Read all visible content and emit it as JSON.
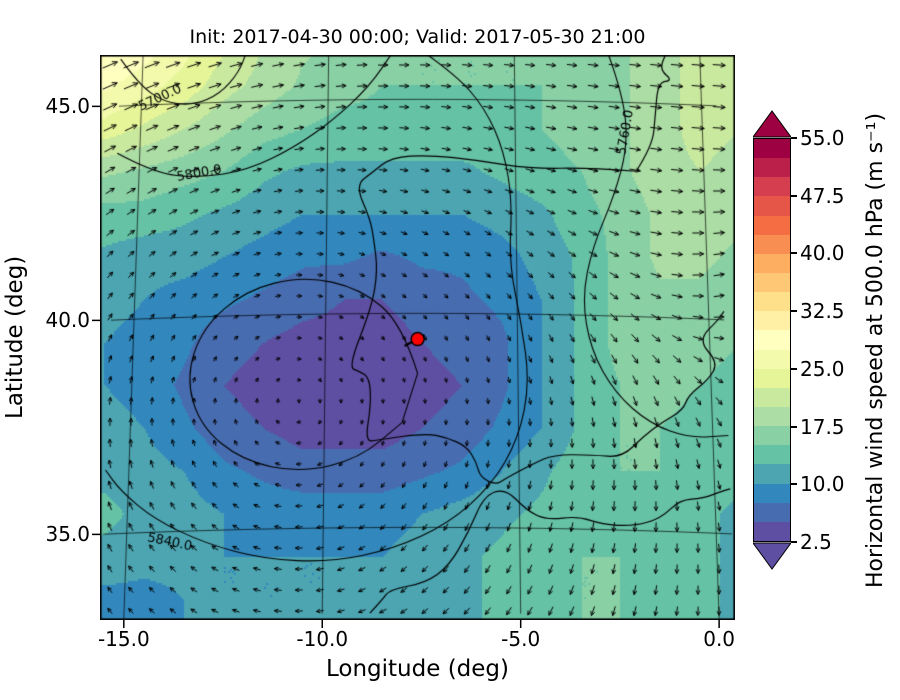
{
  "chart_data": {
    "type": "heatmap",
    "title": "Init: 2017-04-30 00:00; Valid: 2017-05-30 21:00",
    "xlabel": "Longitude (deg)",
    "ylabel": "Latitude (deg)",
    "xlim": [
      -15.6,
      0.4
    ],
    "ylim": [
      33.0,
      46.2
    ],
    "xticks": [
      -15.0,
      -10.0,
      -5.0,
      0.0
    ],
    "xtick_labels": [
      "-15.0",
      "-10.0",
      "-5.0",
      "0.0"
    ],
    "yticks": [
      35.0,
      40.0,
      45.0
    ],
    "ytick_labels": [
      "35.0",
      "40.0",
      "45.0"
    ],
    "grid": true,
    "colorbar": {
      "label": "Horizontal wind speed at 500.0 hPa (m s⁻¹)",
      "ticks": [
        2.5,
        10.0,
        17.5,
        25.0,
        32.5,
        40.0,
        47.5,
        55.0
      ],
      "tick_labels": [
        "2.5",
        "10.0",
        "17.5",
        "25.0",
        "32.5",
        "40.0",
        "47.5",
        "55.0"
      ],
      "vmin": 2.5,
      "vmax": 55.0,
      "level_step": 2.5,
      "colormap": "Spectral_r",
      "anchors": [
        "#5e4fa2",
        "#3288bd",
        "#66c2a5",
        "#abdda4",
        "#e6f598",
        "#ffffbf",
        "#fee08b",
        "#fdae61",
        "#f46d43",
        "#d53e4f",
        "#9e0142"
      ],
      "extend": "both"
    },
    "marker": {
      "lon": -7.6,
      "lat": 39.4,
      "color": "#ff0000",
      "edge_color": "#000000"
    },
    "flow": {
      "sense": "clockwise",
      "center_lon": -10.7,
      "center_lat": 38.4,
      "radius_deg": 3.8,
      "max_tangential": 9,
      "jet_speed": 22,
      "jet_lat": 44
    },
    "wind_field": {
      "lons": [
        -15.5,
        -14.5,
        -13.5,
        -12.5,
        -11.5,
        -10.5,
        -9.5,
        -8.5,
        -7.5,
        -6.5,
        -5.5,
        -4.5,
        -3.5,
        -2.5,
        -1.5,
        -0.5,
        0.5
      ],
      "lats": [
        33.5,
        34.5,
        35.5,
        36.5,
        37.5,
        38.5,
        39.5,
        40.5,
        41.5,
        42.5,
        43.5,
        44.5,
        45.5,
        46.5
      ],
      "speed": [
        [
          9,
          9,
          10,
          10,
          10,
          10,
          10,
          11,
          11,
          12,
          13,
          14,
          15,
          15,
          14,
          13,
          12
        ],
        [
          12,
          11,
          11,
          10,
          10,
          10,
          10,
          10,
          11,
          12,
          13,
          14,
          15,
          15,
          14,
          13,
          12
        ],
        [
          13,
          12,
          11,
          10,
          9,
          9,
          9,
          9,
          10,
          11,
          12,
          13,
          14,
          15,
          14,
          13,
          12
        ],
        [
          12,
          11,
          10,
          8,
          7,
          6,
          6,
          6,
          7,
          8,
          10,
          12,
          14,
          15,
          15,
          14,
          13
        ],
        [
          11,
          10,
          8,
          6,
          5,
          4,
          4,
          4,
          5,
          6,
          8,
          10,
          13,
          15,
          15,
          14,
          13
        ],
        [
          10,
          9,
          7,
          5,
          4,
          3,
          3,
          4,
          4,
          5,
          7,
          10,
          13,
          15,
          16,
          15,
          14
        ],
        [
          10,
          9,
          8,
          6,
          5,
          4,
          4,
          4,
          5,
          6,
          7,
          10,
          13,
          16,
          17,
          16,
          15
        ],
        [
          11,
          10,
          9,
          8,
          7,
          6,
          5,
          5,
          6,
          7,
          8,
          10,
          13,
          16,
          17,
          17,
          16
        ],
        [
          12,
          11,
          11,
          10,
          9,
          8,
          8,
          7,
          8,
          8,
          9,
          11,
          13,
          16,
          18,
          18,
          17
        ],
        [
          14,
          14,
          13,
          12,
          11,
          10,
          10,
          10,
          10,
          10,
          11,
          12,
          14,
          16,
          18,
          19,
          18
        ],
        [
          18,
          17,
          16,
          15,
          13,
          12,
          12,
          12,
          12,
          12,
          13,
          14,
          15,
          17,
          19,
          20,
          19
        ],
        [
          24,
          22,
          20,
          18,
          16,
          15,
          14,
          14,
          14,
          14,
          14,
          15,
          16,
          17,
          19,
          21,
          20
        ],
        [
          28,
          26,
          24,
          21,
          19,
          17,
          16,
          15,
          15,
          15,
          15,
          15,
          16,
          17,
          19,
          21,
          21
        ],
        [
          31,
          29,
          26,
          23,
          20,
          18,
          17,
          16,
          15,
          15,
          15,
          15,
          16,
          17,
          19,
          21,
          21
        ]
      ]
    },
    "contours": [
      {
        "label": "5700.0",
        "label_pos": [
          -14.5,
          45.15
        ],
        "label_rot": -25,
        "closed": false,
        "points": [
          [
            -15.6,
            46.1
          ],
          [
            -15.1,
            45.5
          ],
          [
            -14.4,
            45.05
          ],
          [
            -13.6,
            44.95
          ],
          [
            -12.9,
            45.2
          ],
          [
            -12.4,
            45.7
          ],
          [
            -12.2,
            46.2
          ]
        ]
      },
      {
        "label": "5800.0",
        "label_pos": [
          -13.4,
          43.35
        ],
        "label_rot": -10,
        "closed": false,
        "points": [
          [
            -15.6,
            43.9
          ],
          [
            -14.6,
            43.4
          ],
          [
            -13.4,
            43.25
          ],
          [
            -12.1,
            43.4
          ],
          [
            -10.9,
            43.9
          ],
          [
            -9.9,
            44.5
          ],
          [
            -8.9,
            45.3
          ],
          [
            -8.2,
            46.2
          ]
        ]
      },
      {
        "label": "5840.0",
        "label_pos": [
          -13.9,
          34.75
        ],
        "label_rot": 12,
        "closed": false,
        "points": [
          [
            -7.6,
            46.2
          ],
          [
            -6.6,
            45.6
          ],
          [
            -5.8,
            44.8
          ],
          [
            -5.3,
            43.8
          ],
          [
            -5.1,
            42.6
          ],
          [
            -5.2,
            41.2
          ],
          [
            -4.9,
            39.8
          ],
          [
            -4.7,
            38.4
          ],
          [
            -5.0,
            37.1
          ],
          [
            -5.7,
            36.0
          ],
          [
            -6.8,
            35.1
          ],
          [
            -8.2,
            34.5
          ],
          [
            -9.8,
            34.2
          ],
          [
            -11.5,
            34.3
          ],
          [
            -13.0,
            34.7
          ],
          [
            -14.3,
            35.3
          ],
          [
            -15.2,
            36.0
          ],
          [
            -15.6,
            36.5
          ]
        ]
      },
      {
        "label": "",
        "label_pos": null,
        "label_rot": 0,
        "closed": true,
        "points": [
          [
            -7.6,
            38.6
          ],
          [
            -8.0,
            39.75
          ],
          [
            -9.1,
            40.59
          ],
          [
            -10.6,
            40.9
          ],
          [
            -12.1,
            40.59
          ],
          [
            -13.2,
            39.75
          ],
          [
            -13.6,
            38.6
          ],
          [
            -13.2,
            37.45
          ],
          [
            -12.1,
            36.61
          ],
          [
            -10.6,
            36.3
          ],
          [
            -9.1,
            36.61
          ],
          [
            -8.0,
            37.45
          ]
        ]
      },
      {
        "label": "5760.0",
        "label_pos": [
          -2.05,
          44.3
        ],
        "label_rot": -80,
        "closed": false,
        "points": [
          [
            -2.5,
            46.2
          ],
          [
            -2.1,
            45.2
          ],
          [
            -2.0,
            44.0
          ],
          [
            -2.4,
            42.8
          ],
          [
            -3.0,
            41.6
          ],
          [
            -3.3,
            40.4
          ],
          [
            -3.1,
            39.2
          ],
          [
            -2.5,
            38.2
          ],
          [
            -1.6,
            37.5
          ],
          [
            -0.6,
            37.2
          ],
          [
            0.4,
            37.3
          ]
        ]
      }
    ],
    "coastlines": [
      [
        [
          -1.8,
          43.4
        ],
        [
          -3.0,
          43.45
        ],
        [
          -4.6,
          43.4
        ],
        [
          -6.0,
          43.58
        ],
        [
          -7.3,
          43.7
        ],
        [
          -8.3,
          43.65
        ],
        [
          -8.8,
          43.3
        ],
        [
          -9.25,
          43.0
        ],
        [
          -8.85,
          42.2
        ],
        [
          -8.75,
          41.7
        ],
        [
          -8.65,
          41.0
        ],
        [
          -8.8,
          40.15
        ],
        [
          -9.4,
          38.75
        ],
        [
          -9.1,
          38.65
        ],
        [
          -8.85,
          38.5
        ],
        [
          -8.8,
          37.9
        ],
        [
          -8.95,
          37.0
        ],
        [
          -8.6,
          37.05
        ],
        [
          -7.4,
          37.2
        ],
        [
          -6.85,
          37.1
        ],
        [
          -6.35,
          36.9
        ],
        [
          -6.1,
          36.55
        ],
        [
          -6.0,
          36.18
        ],
        [
          -5.6,
          36.0
        ],
        [
          -5.35,
          36.15
        ],
        [
          -4.65,
          36.5
        ],
        [
          -4.1,
          36.73
        ],
        [
          -3.1,
          36.74
        ],
        [
          -2.35,
          36.7
        ],
        [
          -1.8,
          37.2
        ],
        [
          -1.3,
          37.55
        ],
        [
          -0.75,
          37.85
        ],
        [
          -0.6,
          38.2
        ],
        [
          -0.05,
          38.6
        ],
        [
          0.2,
          39.0
        ],
        [
          -0.3,
          39.5
        ],
        [
          0.25,
          40.0
        ],
        [
          0.4,
          40.2
        ]
      ],
      [
        [
          -1.8,
          43.4
        ],
        [
          -1.35,
          44.0
        ],
        [
          -1.25,
          44.7
        ],
        [
          -1.15,
          45.5
        ],
        [
          -0.75,
          45.55
        ],
        [
          -1.1,
          45.8
        ],
        [
          -0.9,
          46.2
        ]
      ],
      [
        [
          -8.8,
          33.0
        ],
        [
          -8.5,
          33.3
        ],
        [
          -8.3,
          33.55
        ],
        [
          -7.4,
          33.7
        ],
        [
          -6.8,
          34.1
        ],
        [
          -6.3,
          34.9
        ],
        [
          -5.9,
          35.75
        ],
        [
          -5.35,
          35.92
        ],
        [
          -4.8,
          35.4
        ],
        [
          -4.3,
          35.2
        ],
        [
          -3.5,
          35.3
        ],
        [
          -2.9,
          35.12
        ],
        [
          -2.1,
          35.1
        ],
        [
          -1.4,
          35.3
        ],
        [
          -0.9,
          35.75
        ],
        [
          -0.3,
          35.8
        ],
        [
          0.2,
          36.0
        ],
        [
          0.4,
          36.05
        ]
      ]
    ]
  }
}
